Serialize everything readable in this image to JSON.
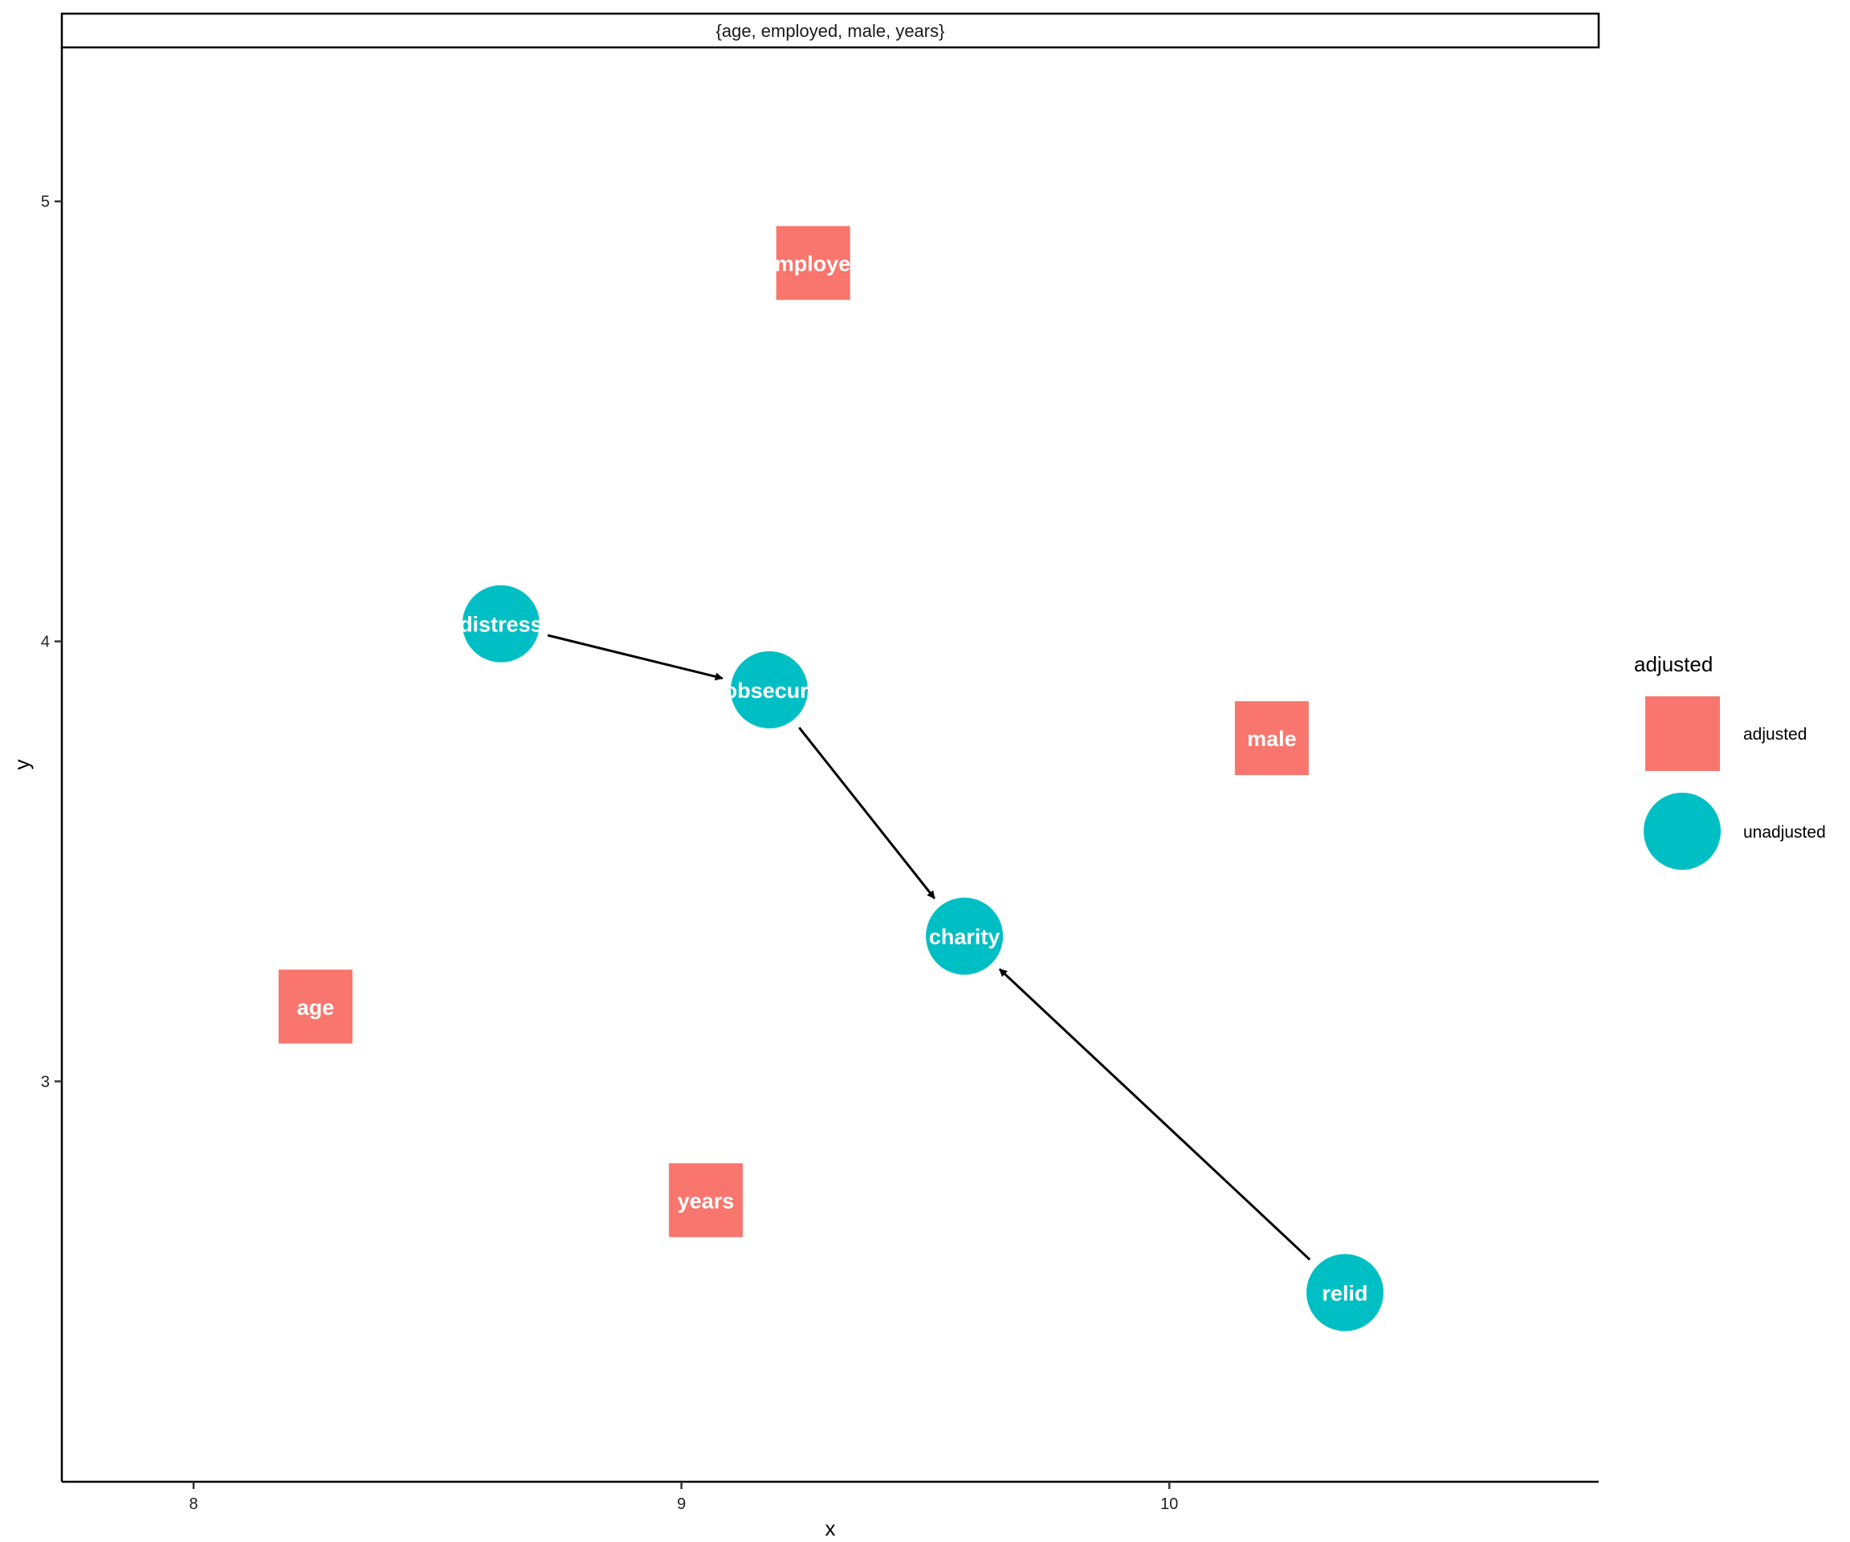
{
  "chart_data": {
    "type": "dag",
    "facet_label": "{age, employed, male, years}",
    "xlabel": "x",
    "ylabel": "y",
    "xlim": [
      7.73,
      10.88
    ],
    "ylim": [
      2.09,
      5.35
    ],
    "x_ticks": [
      8,
      9,
      10
    ],
    "y_ticks": [
      3,
      4,
      5
    ],
    "grid": false,
    "legend": {
      "title": "adjusted",
      "placement": "right",
      "entries": [
        {
          "label": "adjusted",
          "shape": "square",
          "color": "#F8766D"
        },
        {
          "label": "unadjusted",
          "shape": "circle",
          "color": "#00BFC4"
        }
      ]
    },
    "colors": {
      "adjusted": "#F8766D",
      "unadjusted": "#00BFC4"
    },
    "nodes": [
      {
        "name": "employed",
        "x": 9.27,
        "y": 4.86,
        "status": "adjusted"
      },
      {
        "name": "distress",
        "x": 8.63,
        "y": 4.04,
        "status": "unadjusted"
      },
      {
        "name": "jobsecure",
        "x": 9.18,
        "y": 3.89,
        "status": "unadjusted"
      },
      {
        "name": "male",
        "x": 10.21,
        "y": 3.78,
        "status": "adjusted"
      },
      {
        "name": "charity",
        "x": 9.58,
        "y": 3.33,
        "status": "unadjusted"
      },
      {
        "name": "age",
        "x": 8.25,
        "y": 3.17,
        "status": "adjusted"
      },
      {
        "name": "years",
        "x": 9.05,
        "y": 2.73,
        "status": "adjusted"
      },
      {
        "name": "relid",
        "x": 10.36,
        "y": 2.52,
        "status": "unadjusted"
      }
    ],
    "edges": [
      {
        "from": "distress",
        "to": "jobsecure"
      },
      {
        "from": "jobsecure",
        "to": "charity"
      },
      {
        "from": "relid",
        "to": "charity"
      }
    ]
  }
}
